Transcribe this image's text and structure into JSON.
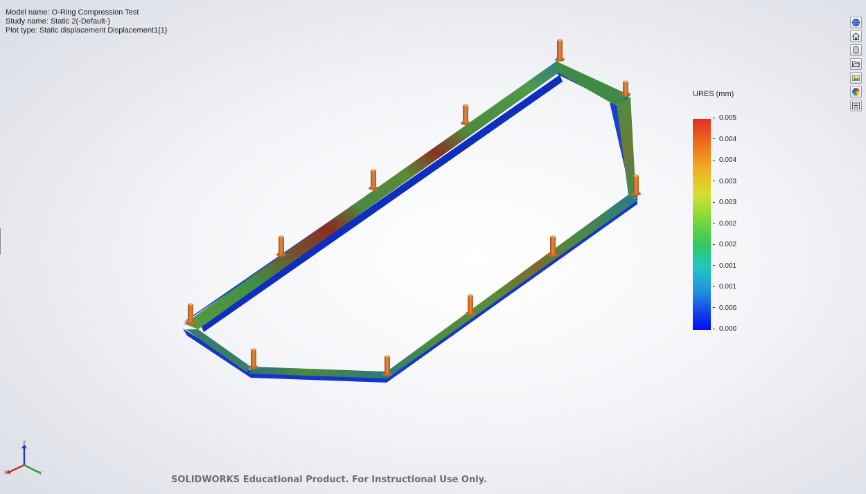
{
  "info": {
    "model_name": "Model name: O-Ring Compression Test",
    "study_name": "Study name: Static 2(-Default-)",
    "plot_type": "Plot type: Static displacement Displacement1{1}"
  },
  "legend": {
    "title": "URES (mm)",
    "labels": [
      "0.005",
      "0.004",
      "0.004",
      "0.003",
      "0.003",
      "0.002",
      "0.002",
      "0.001",
      "0.001",
      "0.000",
      "0.000"
    ],
    "colors": {
      "max": "#e03020",
      "high": "#f0b020",
      "mid": "#78d838",
      "low": "#20c8c0",
      "min": "#0010f0"
    }
  },
  "model": {
    "pin_color": "#d9742a",
    "frame_base_color": "#1840d0"
  },
  "toolbar": {
    "buttons": [
      {
        "icon": "globe-icon"
      },
      {
        "icon": "home-icon"
      },
      {
        "icon": "cylinder-icon"
      },
      {
        "icon": "open-folder-icon"
      },
      {
        "icon": "image-icon"
      },
      {
        "icon": "color-wheel-icon"
      },
      {
        "icon": "list-icon"
      }
    ]
  },
  "triad": {
    "x_label": "X",
    "y_label": "Y",
    "z_label": "Z"
  },
  "watermark": "SOLIDWORKS Educational Product. For Instructional Use Only."
}
